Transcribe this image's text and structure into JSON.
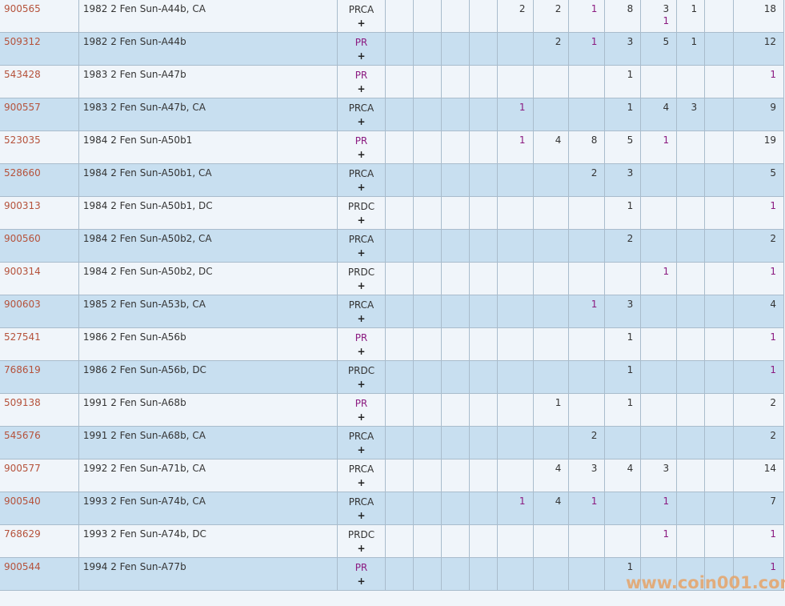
{
  "colors": {
    "code": "#b5523b",
    "purple": "#8b1a80",
    "row_light": "#f0f5fa",
    "row_dark": "#c8dff0",
    "watermark": "#e8a060"
  },
  "purple_columns": [
    4,
    6,
    8,
    11
  ],
  "rows": [
    {
      "code": "900565",
      "name": "1982 2 Fen Sun-A44b, CA",
      "designation": "PRCA",
      "cells": [
        "",
        "",
        "",
        "",
        "2",
        "2",
        "1",
        "8",
        "3\n1",
        "1",
        "",
        "18"
      ]
    },
    {
      "code": "509312",
      "name": "1982 2 Fen Sun-A44b",
      "designation": "PR",
      "cells": [
        "",
        "",
        "",
        "",
        "",
        "2",
        "1",
        "3",
        "5",
        "1",
        "",
        "12"
      ]
    },
    {
      "code": "543428",
      "name": "1983 2 Fen Sun-A47b",
      "designation": "PR",
      "cells": [
        "",
        "",
        "",
        "",
        "",
        "",
        "",
        "1",
        "",
        "",
        "",
        "1"
      ]
    },
    {
      "code": "900557",
      "name": "1983 2 Fen Sun-A47b, CA",
      "designation": "PRCA",
      "cells": [
        "",
        "",
        "",
        "",
        "1",
        "",
        "",
        "1",
        "4",
        "3",
        "",
        "9"
      ]
    },
    {
      "code": "523035",
      "name": "1984 2 Fen Sun-A50b1",
      "designation": "PR",
      "cells": [
        "",
        "",
        "",
        "",
        "1",
        "4",
        "8",
        "5",
        "1",
        "",
        "",
        "19"
      ]
    },
    {
      "code": "528660",
      "name": "1984 2 Fen Sun-A50b1, CA",
      "designation": "PRCA",
      "cells": [
        "",
        "",
        "",
        "",
        "",
        "",
        "2",
        "3",
        "",
        "",
        "",
        "5"
      ]
    },
    {
      "code": "900313",
      "name": "1984 2 Fen Sun-A50b1, DC",
      "designation": "PRDC",
      "cells": [
        "",
        "",
        "",
        "",
        "",
        "",
        "",
        "1",
        "",
        "",
        "",
        "1"
      ]
    },
    {
      "code": "900560",
      "name": "1984 2 Fen Sun-A50b2, CA",
      "designation": "PRCA",
      "cells": [
        "",
        "",
        "",
        "",
        "",
        "",
        "",
        "2",
        "",
        "",
        "",
        "2"
      ]
    },
    {
      "code": "900314",
      "name": "1984 2 Fen Sun-A50b2, DC",
      "designation": "PRDC",
      "cells": [
        "",
        "",
        "",
        "",
        "",
        "",
        "",
        "",
        "1",
        "",
        "",
        "1"
      ]
    },
    {
      "code": "900603",
      "name": "1985 2 Fen Sun-A53b, CA",
      "designation": "PRCA",
      "cells": [
        "",
        "",
        "",
        "",
        "",
        "",
        "1",
        "3",
        "",
        "",
        "",
        "4"
      ]
    },
    {
      "code": "527541",
      "name": "1986 2 Fen Sun-A56b",
      "designation": "PR",
      "cells": [
        "",
        "",
        "",
        "",
        "",
        "",
        "",
        "1",
        "",
        "",
        "",
        "1"
      ]
    },
    {
      "code": "768619",
      "name": "1986 2 Fen Sun-A56b, DC",
      "designation": "PRDC",
      "cells": [
        "",
        "",
        "",
        "",
        "",
        "",
        "",
        "1",
        "",
        "",
        "",
        "1"
      ]
    },
    {
      "code": "509138",
      "name": "1991 2 Fen Sun-A68b",
      "designation": "PR",
      "cells": [
        "",
        "",
        "",
        "",
        "",
        "1",
        "",
        "1",
        "",
        "",
        "",
        "2"
      ]
    },
    {
      "code": "545676",
      "name": "1991 2 Fen Sun-A68b, CA",
      "designation": "PRCA",
      "cells": [
        "",
        "",
        "",
        "",
        "",
        "",
        "2",
        "",
        "",
        "",
        "",
        "2"
      ]
    },
    {
      "code": "900577",
      "name": "1992 2 Fen Sun-A71b, CA",
      "designation": "PRCA",
      "cells": [
        "",
        "",
        "",
        "",
        "",
        "4",
        "3",
        "4",
        "3",
        "",
        "",
        "14"
      ]
    },
    {
      "code": "900540",
      "name": "1993 2 Fen Sun-A74b, CA",
      "designation": "PRCA",
      "cells": [
        "",
        "",
        "",
        "",
        "1",
        "4",
        "1",
        "",
        "1",
        "",
        "",
        "7"
      ]
    },
    {
      "code": "768629",
      "name": "1993 2 Fen Sun-A74b, DC",
      "designation": "PRDC",
      "cells": [
        "",
        "",
        "",
        "",
        "",
        "",
        "",
        "",
        "1",
        "",
        "",
        "1"
      ]
    },
    {
      "code": "900544",
      "name": "1994 2 Fen Sun-A77b",
      "designation": "PR",
      "cells": [
        "",
        "",
        "",
        "",
        "",
        "",
        "",
        "1",
        "",
        "",
        "",
        "1"
      ]
    }
  ],
  "expand_label": "+",
  "watermark": "www.coin001.com"
}
